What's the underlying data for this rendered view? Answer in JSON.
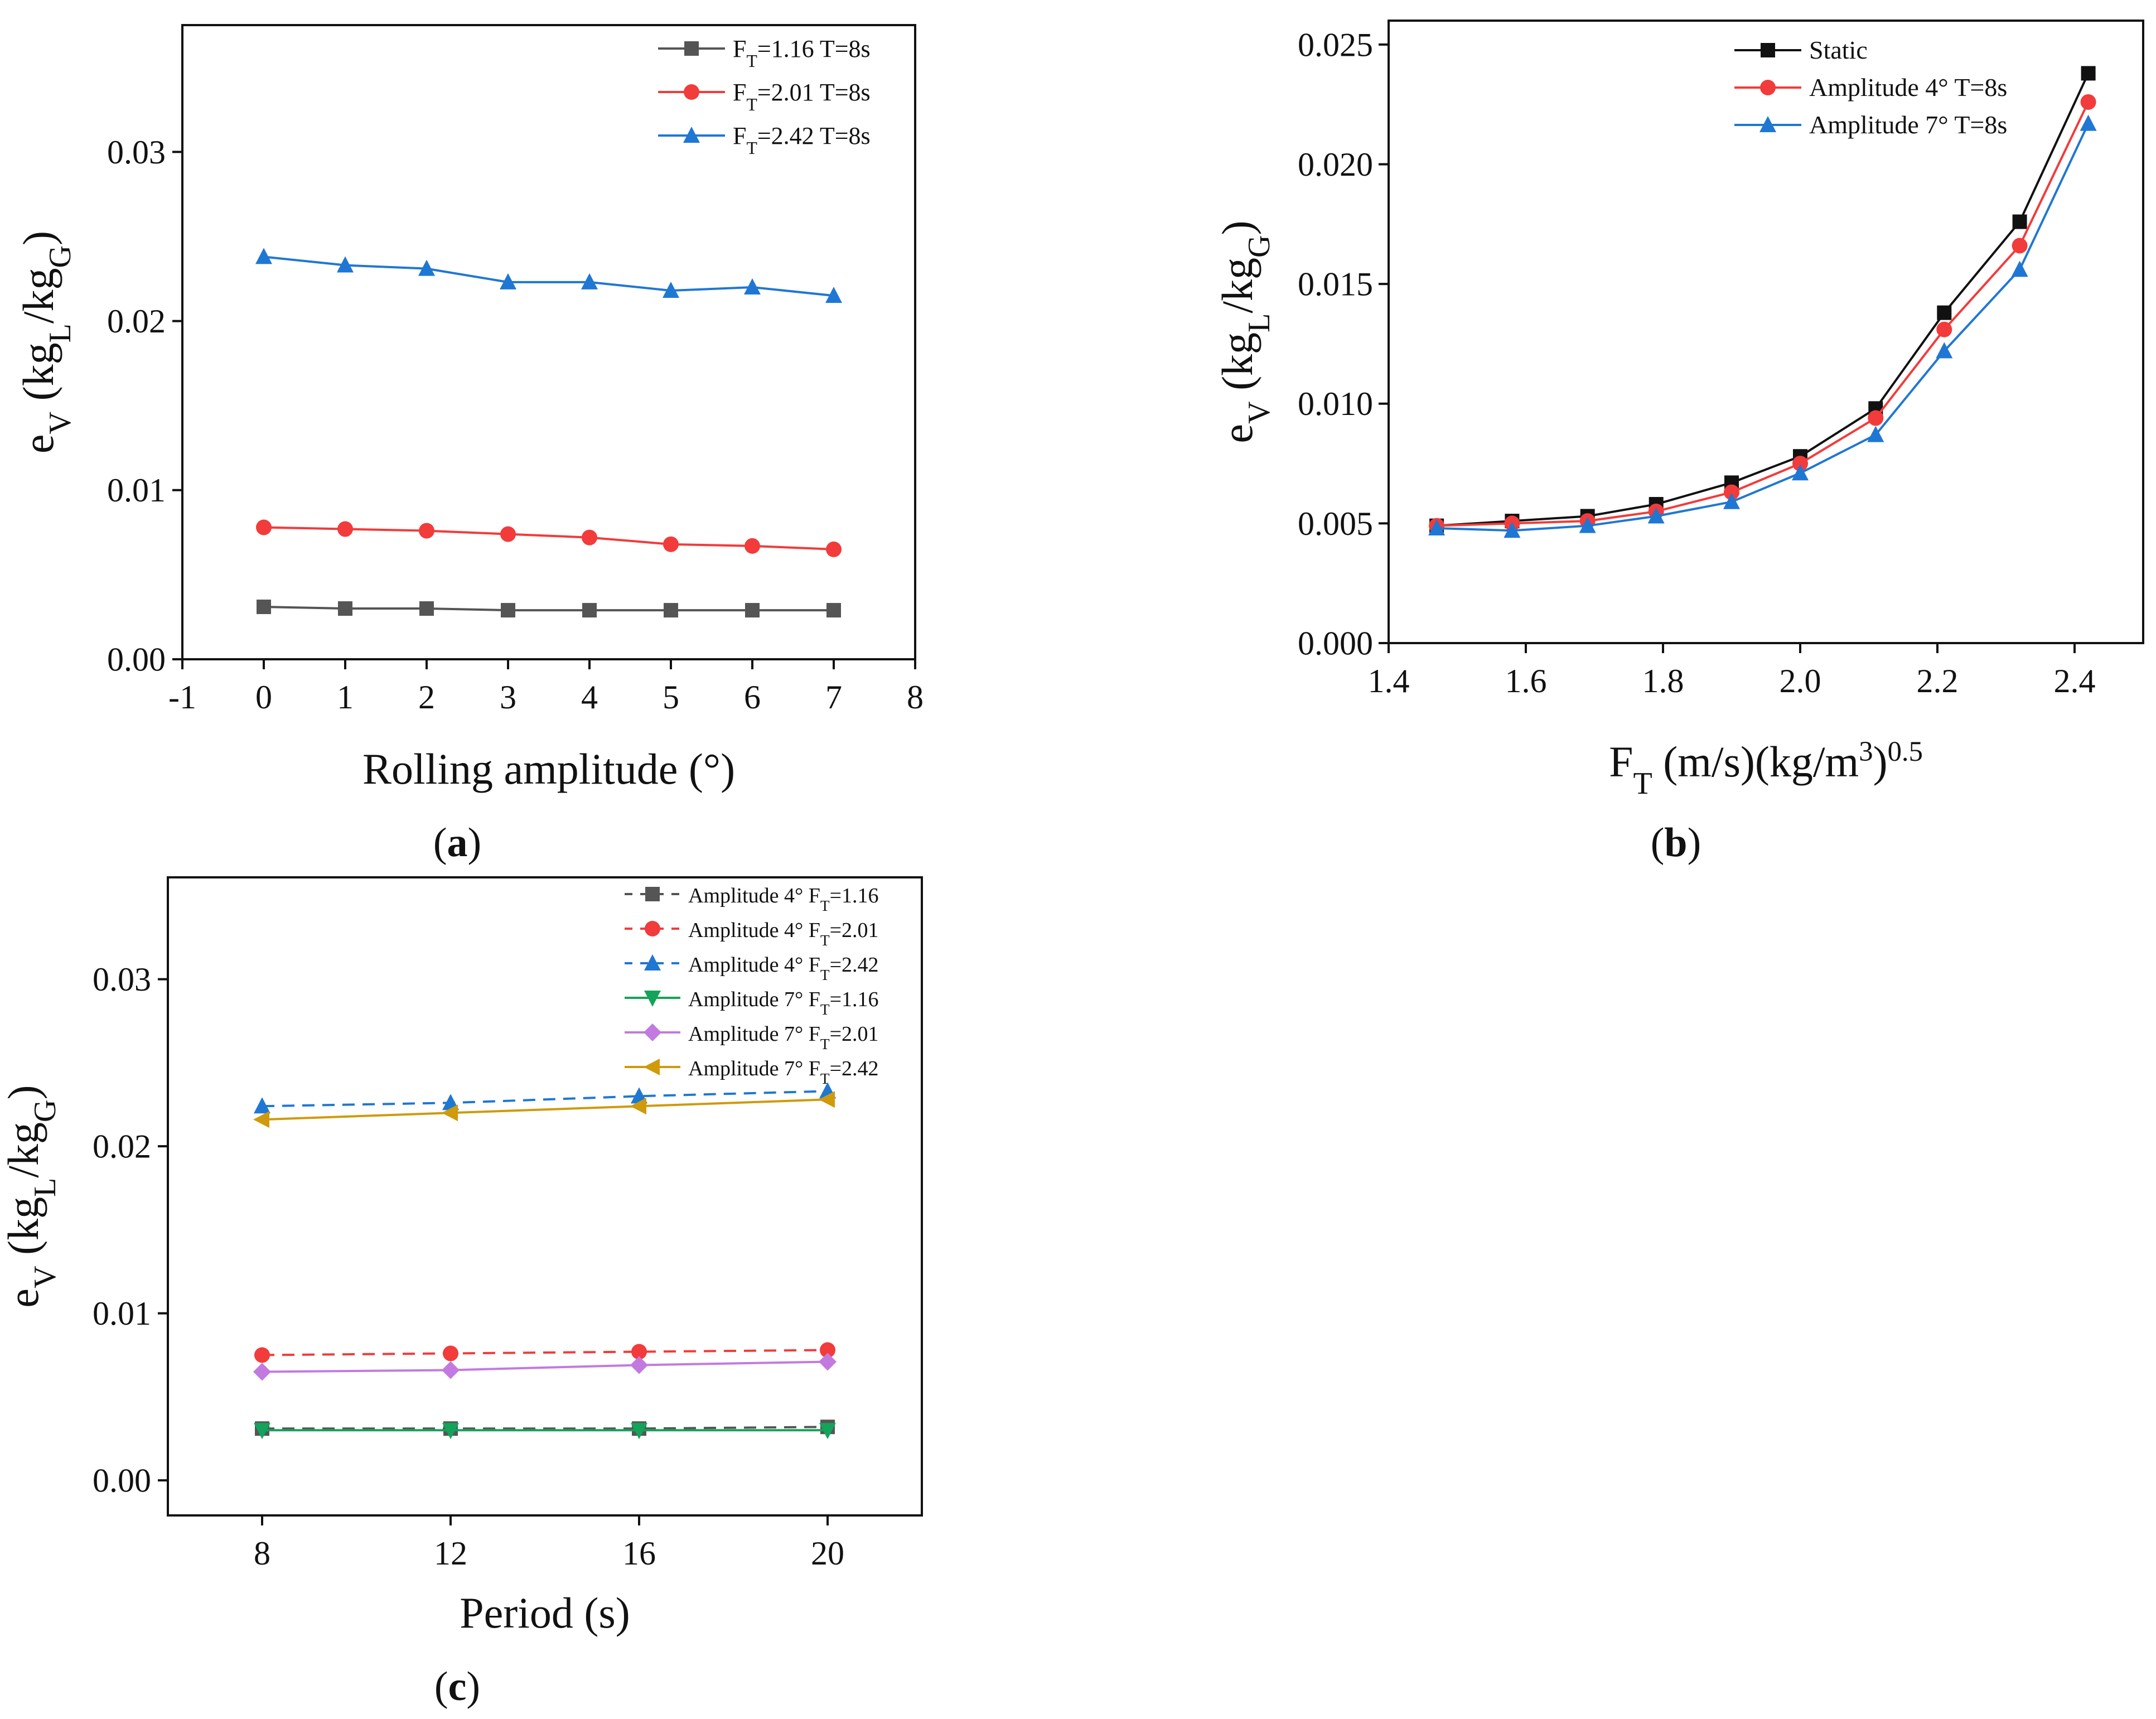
{
  "figure": {
    "panel_labels": [
      {
        "open": "(",
        "letter": "a",
        "close": ")"
      },
      {
        "open": "(",
        "letter": "b",
        "close": ")"
      },
      {
        "open": "(",
        "letter": "c",
        "close": ")"
      }
    ]
  },
  "chart_data": [
    {
      "type": "line",
      "panel": "a",
      "title": "",
      "xlabel": "Rolling amplitude (°)",
      "ylabel": {
        "base": "e",
        "base_sub": "V",
        "open": " (kg",
        "num_sub": "L",
        "mid": "/kg",
        "den_sub": "G",
        "close": ")"
      },
      "xlim": [
        -1,
        8
      ],
      "ylim": [
        0.0,
        0.0375
      ],
      "xticks": [
        -1,
        0,
        1,
        2,
        3,
        4,
        5,
        6,
        7,
        8
      ],
      "xtick_labels": [
        "-1",
        "0",
        "1",
        "2",
        "3",
        "4",
        "5",
        "6",
        "7",
        "8"
      ],
      "yticks": [
        0.0,
        0.01,
        0.02,
        0.03
      ],
      "ytick_labels": [
        "0.00",
        "0.01",
        "0.02",
        "0.03"
      ],
      "legend": "top-right",
      "grid": false,
      "x": [
        0,
        1,
        2,
        3,
        4,
        5,
        6,
        7
      ],
      "series": [
        {
          "name": "FT=1.16 T=8s",
          "label": {
            "pre": "F",
            "sub": "T",
            "post": "=1.16 T=8s"
          },
          "color": "#555555",
          "marker": "square",
          "dash": "solid",
          "values": [
            0.0031,
            0.003,
            0.003,
            0.0029,
            0.0029,
            0.0029,
            0.0029,
            0.0029
          ]
        },
        {
          "name": "FT=2.01 T=8s",
          "label": {
            "pre": "F",
            "sub": "T",
            "post": "=2.01 T=8s"
          },
          "color": "#f23b3b",
          "marker": "circle",
          "dash": "solid",
          "values": [
            0.0078,
            0.0077,
            0.0076,
            0.0074,
            0.0072,
            0.0068,
            0.0067,
            0.0065
          ]
        },
        {
          "name": "FT=2.42 T=8s",
          "label": {
            "pre": "F",
            "sub": "T",
            "post": "=2.42 T=8s"
          },
          "color": "#1f77d4",
          "marker": "triangle-up",
          "dash": "solid",
          "values": [
            0.0238,
            0.0233,
            0.0231,
            0.0223,
            0.0223,
            0.0218,
            0.022,
            0.0215
          ]
        }
      ]
    },
    {
      "type": "line",
      "panel": "b",
      "title": "",
      "xlabel": {
        "base": "F",
        "sub": "T",
        "mid": " (m/s)(kg/m",
        "sup1": "3",
        "close": ")",
        "sup2": "0.5"
      },
      "ylabel": {
        "base": "e",
        "base_sub": "V",
        "open": " (kg",
        "num_sub": "L",
        "mid": "/kg",
        "den_sub": "G",
        "close": ")"
      },
      "xlim": [
        1.4,
        2.5
      ],
      "ylim": [
        0.0,
        0.026
      ],
      "xticks": [
        1.4,
        1.6,
        1.8,
        2.0,
        2.2,
        2.4
      ],
      "xtick_labels": [
        "1.4",
        "1.6",
        "1.8",
        "2.0",
        "2.2",
        "2.4"
      ],
      "yticks": [
        0.0,
        0.005,
        0.01,
        0.015,
        0.02,
        0.025
      ],
      "ytick_labels": [
        "0.000",
        "0.005",
        "0.010",
        "0.015",
        "0.020",
        "0.025"
      ],
      "legend": "top-right",
      "grid": false,
      "x": [
        1.47,
        1.58,
        1.69,
        1.79,
        1.9,
        2.0,
        2.11,
        2.21,
        2.32,
        2.42
      ],
      "series": [
        {
          "name": "Static",
          "label": {
            "pre": "Static",
            "sub": "",
            "post": ""
          },
          "color": "#111111",
          "marker": "square",
          "dash": "solid",
          "values": [
            0.0049,
            0.0051,
            0.0053,
            0.0058,
            0.0067,
            0.0078,
            0.0098,
            0.0138,
            0.0176,
            0.0238
          ]
        },
        {
          "name": "Amplitude 4° T=8s",
          "label": {
            "pre": "Amplitude 4° T=8s",
            "sub": "",
            "post": ""
          },
          "color": "#f23b3b",
          "marker": "circle",
          "dash": "solid",
          "values": [
            0.0049,
            0.005,
            0.0051,
            0.0055,
            0.0063,
            0.0075,
            0.0094,
            0.0131,
            0.0166,
            0.0226
          ]
        },
        {
          "name": "Amplitude 7° T=8s",
          "label": {
            "pre": "Amplitude 7° T=8s",
            "sub": "",
            "post": ""
          },
          "color": "#1f77d4",
          "marker": "triangle-up",
          "dash": "solid",
          "values": [
            0.0048,
            0.0047,
            0.0049,
            0.0053,
            0.0059,
            0.0071,
            0.0087,
            0.0122,
            0.0156,
            0.0217
          ]
        }
      ]
    },
    {
      "type": "line",
      "panel": "c",
      "title": "",
      "xlabel": "Period (s)",
      "ylabel": {
        "base": "e",
        "base_sub": "V",
        "open": " (kg",
        "num_sub": "L",
        "mid": "/kg",
        "den_sub": "G",
        "close": ")"
      },
      "xlim": [
        6,
        22
      ],
      "ylim": [
        -0.0021,
        0.0361
      ],
      "xticks": [
        8,
        12,
        16,
        20
      ],
      "xtick_labels": [
        "8",
        "12",
        "16",
        "20"
      ],
      "yticks": [
        0.0,
        0.01,
        0.02,
        0.03
      ],
      "ytick_labels": [
        "0.00",
        "0.01",
        "0.02",
        "0.03"
      ],
      "legend": "top-right",
      "grid": false,
      "x": [
        8,
        12,
        16,
        20
      ],
      "series": [
        {
          "name": "Amplitude 4° FT=1.16",
          "label": {
            "pre": "Amplitude 4°  F",
            "sub": "T",
            "post": "=1.16"
          },
          "color": "#555555",
          "marker": "square",
          "dash": "dashed",
          "values": [
            0.0031,
            0.0031,
            0.0031,
            0.0032
          ]
        },
        {
          "name": "Amplitude 4° FT=2.01",
          "label": {
            "pre": "Amplitude 4°  F",
            "sub": "T",
            "post": "=2.01"
          },
          "color": "#f23b3b",
          "marker": "circle",
          "dash": "dashed",
          "values": [
            0.0075,
            0.0076,
            0.0077,
            0.0078
          ]
        },
        {
          "name": "Amplitude 4° FT=2.42",
          "label": {
            "pre": "Amplitude 4°  F",
            "sub": "T",
            "post": "=2.42"
          },
          "color": "#1f77d4",
          "marker": "triangle-up",
          "dash": "dashed",
          "values": [
            0.0224,
            0.0226,
            0.023,
            0.0233
          ]
        },
        {
          "name": "Amplitude 7° FT=1.16",
          "label": {
            "pre": "Amplitude 7°  F",
            "sub": "T",
            "post": "=1.16"
          },
          "color": "#14a35a",
          "marker": "triangle-down",
          "dash": "solid",
          "values": [
            0.003,
            0.003,
            0.003,
            0.003
          ]
        },
        {
          "name": "Amplitude 7° FT=2.01",
          "label": {
            "pre": "Amplitude 7°  F",
            "sub": "T",
            "post": "=2.01"
          },
          "color": "#c27ae0",
          "marker": "diamond",
          "dash": "solid",
          "values": [
            0.0065,
            0.0066,
            0.0069,
            0.0071
          ]
        },
        {
          "name": "Amplitude 7° FT=2.42",
          "label": {
            "pre": "Amplitude 7°  F",
            "sub": "T",
            "post": "=2.42"
          },
          "color": "#cf9a0c",
          "marker": "triangle-left",
          "dash": "solid",
          "values": [
            0.0216,
            0.022,
            0.0224,
            0.0228
          ]
        }
      ]
    }
  ]
}
